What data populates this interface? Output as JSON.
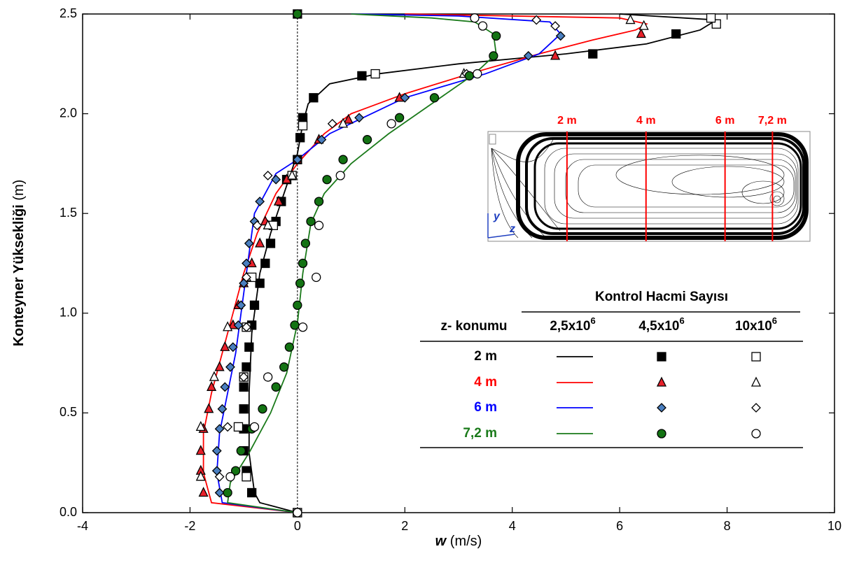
{
  "chart_data": {
    "type": "line",
    "xlabel": [
      "w",
      "(m/s)"
    ],
    "ylabel": [
      "Konteyner Yüksekliği",
      "(m)"
    ],
    "xlim": [
      -4,
      10
    ],
    "xticks": [
      -4,
      -2,
      0,
      2,
      4,
      6,
      8,
      10
    ],
    "ylim": [
      0,
      2.5
    ],
    "yticks": [
      {
        "value": 0,
        "label": "0.0"
      },
      {
        "value": 0.5,
        "label": "0.5"
      },
      {
        "value": 1,
        "label": "1.0"
      },
      {
        "value": 1.5,
        "label": "1.5"
      },
      {
        "value": 2,
        "label": "2.0"
      },
      {
        "value": 2.5,
        "label": "2.5"
      }
    ],
    "zero_line": true,
    "legend": {
      "title": "Kontrol Hacmi Sayısı",
      "columns": [
        "z- konumu",
        {
          "base": "2,5x10",
          "exp": "6"
        },
        {
          "base": "4,5x10",
          "exp": "6"
        },
        {
          "base": "10x10",
          "exp": "6"
        }
      ]
    },
    "series": [
      {
        "name": "2 m",
        "color": "#000000",
        "marker": "square",
        "fill": "#000000",
        "line": {
          "x": [
            0,
            -0.7,
            -0.8,
            -0.9,
            -0.9,
            -0.85,
            -0.7,
            -0.5,
            -0.25,
            0,
            0.1,
            0.2,
            0.6,
            1.5,
            3,
            5,
            6.5,
            7.5,
            7.8,
            6
          ],
          "values": [
            0,
            0.05,
            0.1,
            0.3,
            0.6,
            0.9,
            1.2,
            1.4,
            1.6,
            1.8,
            1.95,
            2.05,
            2.15,
            2.2,
            2.25,
            2.3,
            2.35,
            2.42,
            2.47,
            2.5
          ]
        },
        "filled": {
          "x": [
            0,
            -0.85,
            -0.95,
            -1,
            -1,
            -1,
            -1,
            -0.95,
            -0.9,
            -0.85,
            -0.8,
            -0.7,
            -0.6,
            -0.5,
            -0.4,
            -0.3,
            -0.2,
            0,
            0.05,
            0.1,
            0.3,
            1.2,
            5.5,
            7.05,
            0
          ],
          "values": [
            0,
            0.1,
            0.21,
            0.31,
            0.42,
            0.52,
            0.63,
            0.73,
            0.83,
            0.94,
            1.04,
            1.15,
            1.25,
            1.35,
            1.46,
            1.56,
            1.67,
            1.77,
            1.88,
            1.98,
            2.08,
            2.19,
            2.3,
            2.4,
            2.5
          ]
        },
        "open": {
          "x": [
            0,
            -0.95,
            -1.1,
            -1,
            -0.95,
            -0.85,
            -0.45,
            -0.1,
            0.1,
            1.45,
            7.8,
            7.7
          ],
          "values": [
            0,
            0.18,
            0.43,
            0.68,
            0.93,
            1.18,
            1.44,
            1.69,
            1.94,
            2.2,
            2.45,
            2.48
          ]
        }
      },
      {
        "name": "4 m",
        "color": "#ff0000",
        "marker": "triangle",
        "fill": "#e8202a",
        "line": {
          "x": [
            0,
            -1.6,
            -1.75,
            -1.75,
            -1.6,
            -1.4,
            -1.2,
            -1,
            -0.75,
            -0.4,
            0,
            0.5,
            1,
            2,
            3.2,
            4.5,
            5.5,
            6.3,
            6.5,
            6,
            2
          ],
          "values": [
            0,
            0.05,
            0.2,
            0.4,
            0.6,
            0.8,
            1,
            1.2,
            1.4,
            1.6,
            1.75,
            1.9,
            2,
            2.1,
            2.2,
            2.3,
            2.37,
            2.42,
            2.45,
            2.48,
            2.5
          ]
        },
        "filled": {
          "x": [
            -1.75,
            -1.8,
            -1.8,
            -1.75,
            -1.65,
            -1.6,
            -1.45,
            -1.35,
            -1.2,
            -1.1,
            -1,
            -0.85,
            -0.7,
            -0.6,
            -0.35,
            -0.2,
            0,
            0.4,
            0.95,
            1.9,
            4.8,
            6.4
          ],
          "values": [
            0.1,
            0.21,
            0.31,
            0.42,
            0.52,
            0.63,
            0.73,
            0.83,
            0.94,
            1.04,
            1.15,
            1.25,
            1.35,
            1.46,
            1.56,
            1.67,
            1.77,
            1.87,
            1.97,
            2.08,
            2.29,
            2.4
          ]
        },
        "open": {
          "x": [
            -1.8,
            -1.8,
            -1.55,
            -1.3,
            -0.95,
            -0.55,
            -0.1,
            0.85,
            3.1,
            6.45,
            6.2
          ],
          "values": [
            0.18,
            0.43,
            0.68,
            0.93,
            1.18,
            1.44,
            1.69,
            1.95,
            2.2,
            2.44,
            2.47
          ]
        }
      },
      {
        "name": "6 m",
        "color": "#0000ff",
        "marker": "diamond",
        "fill": "#4a7fc0",
        "line": {
          "x": [
            0,
            -1.4,
            -1.5,
            -1.45,
            -1.3,
            -1.15,
            -1.05,
            -0.9,
            -0.8,
            -0.4,
            0,
            0.6,
            2,
            3.5,
            4.5,
            4.9,
            4.7,
            3,
            1
          ],
          "values": [
            0,
            0.05,
            0.2,
            0.4,
            0.6,
            0.8,
            1,
            1.3,
            1.5,
            1.7,
            1.77,
            1.9,
            2.08,
            2.2,
            2.3,
            2.4,
            2.46,
            2.49,
            2.5
          ]
        },
        "filled": {
          "x": [
            -1.45,
            -1.5,
            -1.5,
            -1.45,
            -1.4,
            -1.35,
            -1.25,
            -1.2,
            -1.1,
            -1.05,
            -1,
            -0.95,
            -0.9,
            -0.8,
            -0.7,
            -0.4,
            0,
            0.45,
            1.15,
            2,
            3.2,
            4.3,
            4.9
          ],
          "values": [
            0.1,
            0.21,
            0.31,
            0.42,
            0.52,
            0.63,
            0.73,
            0.83,
            0.94,
            1.04,
            1.15,
            1.25,
            1.35,
            1.46,
            1.56,
            1.67,
            1.77,
            1.87,
            1.98,
            2.08,
            2.19,
            2.29,
            2.39
          ]
        },
        "open": {
          "x": [
            -1.45,
            -1.3,
            -1,
            -0.95,
            -0.95,
            -0.75,
            -0.55,
            0.65,
            3.15,
            4.8,
            4.45
          ],
          "values": [
            0.18,
            0.43,
            0.68,
            0.93,
            1.18,
            1.44,
            1.69,
            1.95,
            2.2,
            2.44,
            2.47
          ]
        }
      },
      {
        "name": "7,2 m",
        "color": "#1a7a1a",
        "marker": "circle",
        "fill": "#137313",
        "line": {
          "x": [
            0,
            -1.3,
            -1.25,
            -0.9,
            -0.5,
            -0.2,
            0,
            0.1,
            0.25,
            0.5,
            1,
            1.7,
            2.5,
            3.3,
            3.7,
            3.65,
            3.3,
            2.5,
            1
          ],
          "values": [
            0,
            0.05,
            0.15,
            0.3,
            0.5,
            0.7,
            0.95,
            1.2,
            1.45,
            1.6,
            1.75,
            1.9,
            2.05,
            2.2,
            2.3,
            2.4,
            2.46,
            2.48,
            2.5
          ]
        },
        "filled": {
          "x": [
            -1.3,
            -1.15,
            -1.05,
            -0.85,
            -0.65,
            -0.4,
            -0.25,
            -0.15,
            -0.05,
            0,
            0.05,
            0.1,
            0.15,
            0.25,
            0.4,
            0.55,
            0.85,
            1.3,
            1.9,
            2.55,
            3.2,
            3.65,
            3.7,
            0
          ],
          "values": [
            0.1,
            0.21,
            0.31,
            0.42,
            0.52,
            0.63,
            0.73,
            0.83,
            0.94,
            1.04,
            1.15,
            1.25,
            1.35,
            1.46,
            1.56,
            1.67,
            1.77,
            1.87,
            1.98,
            2.08,
            2.19,
            2.29,
            2.39,
            2.5
          ]
        },
        "open": {
          "x": [
            0,
            -1.25,
            -0.8,
            -0.55,
            0.1,
            0.35,
            0.4,
            0.8,
            1.75,
            3.35,
            3.45,
            3.3
          ],
          "values": [
            0,
            0.18,
            0.43,
            0.68,
            0.93,
            1.18,
            1.44,
            1.69,
            1.95,
            2.2,
            2.44,
            2.48
          ]
        }
      }
    ],
    "inset": {
      "labels": [
        "2 m",
        "4 m",
        "6 m",
        "7,2 m"
      ],
      "positions": [
        2,
        4,
        6,
        7.2
      ],
      "zlim": [
        0,
        8.15
      ],
      "axes": [
        "y",
        "z"
      ],
      "color": "#ff0000"
    }
  }
}
